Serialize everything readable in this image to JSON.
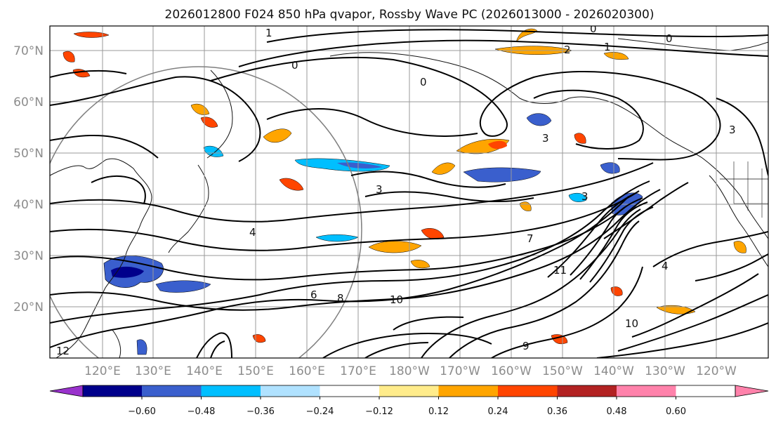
{
  "title": "2026012800 F024 850 hPa qvapor, Rossby Wave PC (2026013000 - 2026020300)",
  "map": {
    "lat_labels": [
      "70°N",
      "60°N",
      "50°N",
      "40°N",
      "30°N",
      "20°N"
    ],
    "lon_labels": [
      "120°E",
      "130°E",
      "140°E",
      "150°E",
      "160°E",
      "170°E",
      "180°W",
      "170°W",
      "160°W",
      "150°W",
      "140°W",
      "130°W",
      "120°W"
    ],
    "contour_labels": [
      "0",
      "0",
      "0",
      "0",
      "1",
      "1",
      "2",
      "3",
      "3",
      "3",
      "3",
      "4",
      "4",
      "6",
      "8",
      "9",
      "10",
      "10",
      "11",
      "12",
      "7"
    ]
  },
  "colorbar": {
    "tick_labels": [
      "−0.60",
      "−0.48",
      "−0.36",
      "−0.24",
      "−0.12",
      "0.12",
      "0.24",
      "0.36",
      "0.48",
      "0.60"
    ],
    "colors": [
      "#9932cc",
      "#00008b",
      "#3a5fcd",
      "#00bfff",
      "#b0e2ff",
      "#ffffff",
      "#ffec8b",
      "#ffa500",
      "#ff4500",
      "#b22222",
      "#ff82ab"
    ],
    "extend_low_color": "#9932cc",
    "extend_high_color": "#ff82ab"
  }
}
